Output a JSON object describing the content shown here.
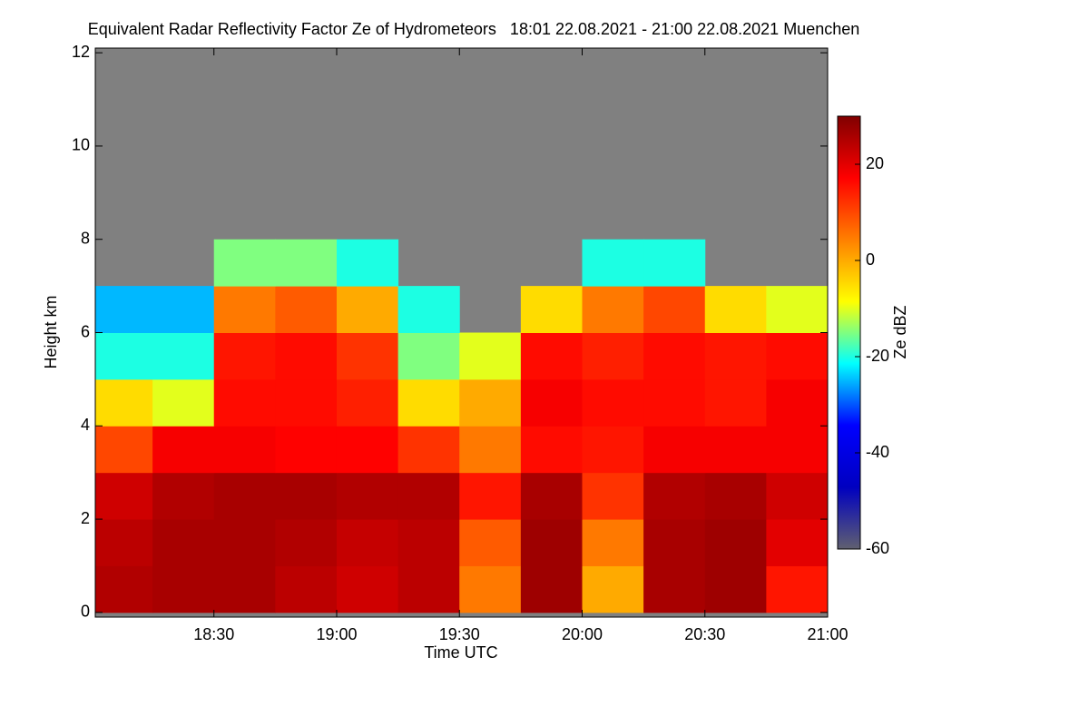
{
  "chart_data": {
    "type": "heatmap",
    "title": "Equivalent Radar Reflectivity Factor Ze of Hydrometeors   18:01 22.08.2021 - 21:00 22.08.2021 Muenchen",
    "xlabel": "Time UTC",
    "ylabel": "Height km",
    "colorbar_label": "Ze dBZ",
    "xlim": [
      18.0167,
      21.0
    ],
    "xticks": [
      {
        "value": 18.5,
        "label": "18:30"
      },
      {
        "value": 19.0,
        "label": "19:00"
      },
      {
        "value": 19.5,
        "label": "19:30"
      },
      {
        "value": 20.0,
        "label": "20:00"
      },
      {
        "value": 20.5,
        "label": "20:30"
      },
      {
        "value": 21.0,
        "label": "21:00"
      }
    ],
    "ylim": [
      -0.1,
      12.1
    ],
    "yticks": [
      0,
      2,
      4,
      6,
      8,
      10,
      12
    ],
    "zlim": [
      -60,
      30
    ],
    "zticks": [
      -60,
      -40,
      -20,
      0,
      20
    ],
    "colormap": [
      "#606070",
      "#0000c0",
      "#0000ff",
      "#00ffff",
      "#ffff00",
      "#ff8000",
      "#ff0000",
      "#800000"
    ],
    "missing_color": "#808080",
    "x": [
      18.125,
      18.375,
      18.625,
      18.875,
      19.125,
      19.375,
      19.625,
      19.875,
      20.125,
      20.375,
      20.625,
      20.875
    ],
    "y": [
      0.5,
      1.5,
      2.5,
      3.5,
      4.5,
      5.5,
      6.5,
      7.5,
      8.5,
      9.5,
      10.5,
      11.5
    ],
    "z": [
      [
        25,
        26,
        26,
        24,
        22,
        24,
        5,
        27,
        0,
        26,
        27,
        15
      ],
      [
        24,
        26,
        26,
        25,
        23,
        24,
        8,
        27,
        5,
        26,
        27,
        20
      ],
      [
        22,
        25,
        26,
        26,
        25,
        25,
        15,
        26,
        12,
        25,
        26,
        22
      ],
      [
        10,
        18,
        18,
        17,
        17,
        12,
        5,
        16,
        15,
        18,
        18,
        18
      ],
      [
        -5,
        -10,
        16,
        16,
        14,
        -5,
        0,
        18,
        16,
        16,
        15,
        18
      ],
      [
        -20,
        -20,
        15,
        16,
        12,
        -15,
        -10,
        16,
        14,
        16,
        15,
        16
      ],
      [
        -25,
        -25,
        5,
        8,
        0,
        -20,
        null,
        -5,
        5,
        10,
        -5,
        -10
      ],
      [
        null,
        null,
        -15,
        -15,
        -20,
        null,
        null,
        null,
        -20,
        -20,
        null,
        null
      ],
      [
        null,
        null,
        null,
        null,
        null,
        null,
        null,
        null,
        null,
        null,
        null,
        null
      ],
      [
        null,
        null,
        null,
        null,
        null,
        null,
        null,
        null,
        null,
        null,
        null,
        null
      ],
      [
        null,
        null,
        null,
        null,
        null,
        null,
        null,
        null,
        null,
        null,
        null,
        null
      ],
      [
        null,
        null,
        null,
        null,
        null,
        null,
        null,
        null,
        null,
        null,
        null,
        null
      ]
    ]
  }
}
